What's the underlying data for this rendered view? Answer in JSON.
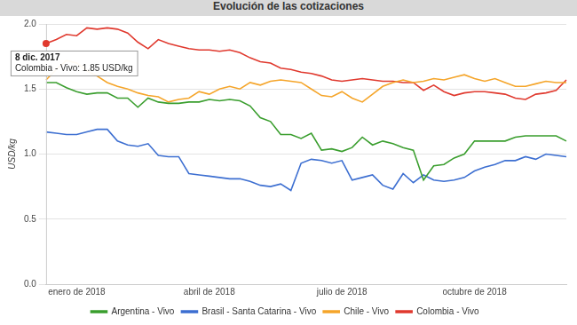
{
  "chart_data": {
    "type": "line",
    "title": "Evolución de las cotizaciones",
    "y_label": "USD/kg",
    "categories": [
      null,
      null,
      null,
      "enero de 2018",
      null,
      null,
      null,
      null,
      null,
      null,
      null,
      null,
      null,
      null,
      null,
      null,
      "abril de 2018",
      null,
      null,
      null,
      null,
      null,
      null,
      null,
      null,
      null,
      null,
      null,
      null,
      "julio de 2018",
      null,
      null,
      null,
      null,
      null,
      null,
      null,
      null,
      null,
      null,
      null,
      null,
      "octubre de 2018",
      null,
      null,
      null,
      null,
      null,
      null,
      null,
      null,
      null
    ],
    "series": [
      {
        "name": "Argentina - Vivo",
        "color": "#3a9e2e",
        "values": [
          1.55,
          1.55,
          1.51,
          1.48,
          1.46,
          1.47,
          1.47,
          1.43,
          1.43,
          1.36,
          1.43,
          1.4,
          1.39,
          1.39,
          1.4,
          1.4,
          1.42,
          1.41,
          1.42,
          1.41,
          1.37,
          1.28,
          1.25,
          1.15,
          1.15,
          1.12,
          1.16,
          1.03,
          1.04,
          1.02,
          1.05,
          1.13,
          1.07,
          1.1,
          1.08,
          1.05,
          1.03,
          0.8,
          0.91,
          0.92,
          0.97,
          1.0,
          1.1,
          1.1,
          1.1,
          1.1,
          1.13,
          1.14,
          1.14,
          1.14,
          1.14,
          1.1
        ]
      },
      {
        "name": "Brasil - Santa Catarina - Vivo",
        "color": "#3d6fd1",
        "values": [
          1.17,
          1.16,
          1.15,
          1.15,
          1.17,
          1.19,
          1.19,
          1.1,
          1.07,
          1.06,
          1.08,
          0.99,
          0.98,
          0.98,
          0.85,
          0.84,
          0.83,
          0.82,
          0.81,
          0.81,
          0.79,
          0.76,
          0.75,
          0.77,
          0.72,
          0.93,
          0.96,
          0.95,
          0.93,
          0.95,
          0.8,
          0.82,
          0.84,
          0.76,
          0.73,
          0.85,
          0.78,
          0.84,
          0.8,
          0.79,
          0.8,
          0.82,
          0.87,
          0.9,
          0.92,
          0.95,
          0.95,
          0.98,
          0.96,
          1.0,
          0.99,
          0.98
        ]
      },
      {
        "name": "Chile - Vivo",
        "color": "#f5a52a",
        "values": [
          1.57,
          1.65,
          1.72,
          1.7,
          1.64,
          1.6,
          1.55,
          1.52,
          1.5,
          1.47,
          1.45,
          1.44,
          1.4,
          1.42,
          1.43,
          1.48,
          1.46,
          1.5,
          1.52,
          1.5,
          1.55,
          1.53,
          1.56,
          1.57,
          1.56,
          1.55,
          1.5,
          1.45,
          1.44,
          1.48,
          1.43,
          1.4,
          1.46,
          1.52,
          1.55,
          1.57,
          1.55,
          1.56,
          1.58,
          1.57,
          1.59,
          1.61,
          1.58,
          1.56,
          1.58,
          1.55,
          1.52,
          1.52,
          1.54,
          1.56,
          1.55,
          1.55
        ]
      },
      {
        "name": "Colombia - Vivo",
        "color": "#e0392e",
        "values": [
          1.85,
          1.88,
          1.92,
          1.91,
          1.97,
          1.96,
          1.97,
          1.96,
          1.93,
          1.86,
          1.81,
          1.88,
          1.85,
          1.83,
          1.81,
          1.8,
          1.8,
          1.79,
          1.8,
          1.78,
          1.74,
          1.71,
          1.7,
          1.66,
          1.65,
          1.63,
          1.62,
          1.6,
          1.57,
          1.56,
          1.57,
          1.58,
          1.57,
          1.56,
          1.56,
          1.55,
          1.55,
          1.49,
          1.53,
          1.48,
          1.45,
          1.47,
          1.48,
          1.48,
          1.47,
          1.46,
          1.43,
          1.42,
          1.46,
          1.47,
          1.49,
          1.57
        ]
      }
    ],
    "ylim": [
      0,
      2.0
    ],
    "yticks": [
      {
        "value": 0,
        "label": "0.0"
      },
      {
        "value": 0.5,
        "label": "0.5"
      },
      {
        "value": 1.0,
        "label": "1.0"
      },
      {
        "value": 1.5,
        "label": "1.5"
      },
      {
        "value": 2.0,
        "label": "2.0"
      }
    ],
    "grid": "y",
    "legend": "bottom",
    "annotations": [
      {
        "series": "Colombia - Vivo",
        "title": "8 dic. 2017",
        "text": "Colombia - Vivo: 1.85 USD/kg"
      }
    ]
  }
}
